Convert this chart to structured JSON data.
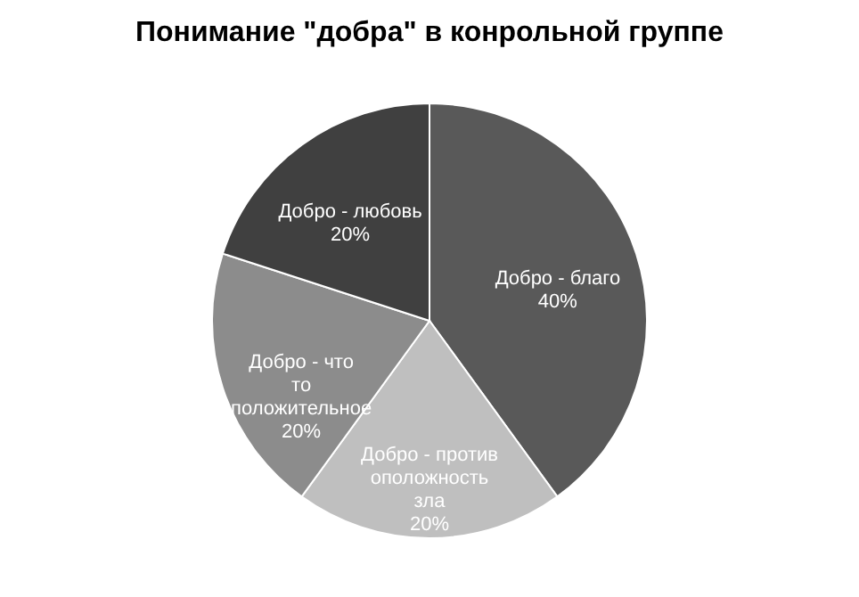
{
  "chart_data": {
    "type": "pie",
    "title": "Понимание \"добра\" в конрольной группе",
    "categories": [
      "Добро - благо",
      "Добро - противоположность зла",
      "Добро -  что то положительное",
      "Добро - любовь"
    ],
    "values": [
      40,
      20,
      20,
      20
    ],
    "value_labels": [
      "40%",
      "20%",
      "20%",
      "20%"
    ],
    "colors": [
      "#595959",
      "#bfbfbf",
      "#8c8c8c",
      "#404040"
    ],
    "legend": false
  }
}
